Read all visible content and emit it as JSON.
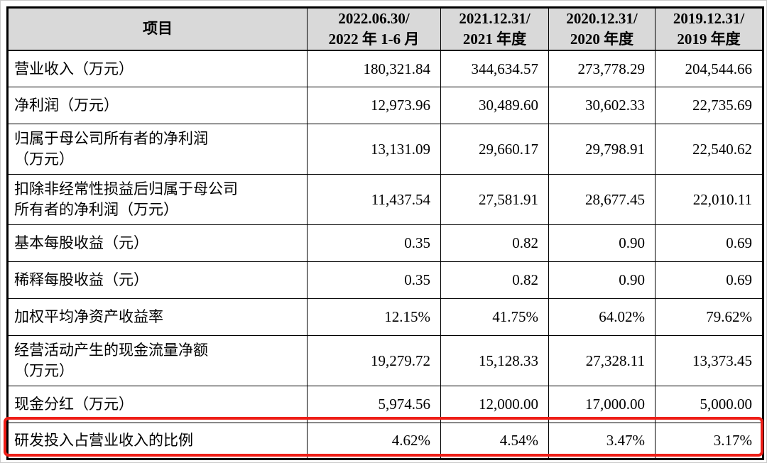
{
  "styles": {
    "header_bg": "#d9d9d9",
    "border_color": "#000000",
    "highlight_color": "#ee1e17",
    "frame_color": "#c9c9c9"
  },
  "table": {
    "header": {
      "item": "项目",
      "periods": [
        "2022.06.30/\n2022 年 1-6 月",
        "2021.12.31/\n2021 年度",
        "2020.12.31/\n2020 年度",
        "2019.12.31/\n2019 年度"
      ]
    },
    "rows": [
      {
        "label": "营业收入（万元）",
        "values": [
          "180,321.84",
          "344,634.57",
          "273,778.29",
          "204,544.66"
        ]
      },
      {
        "label": "净利润（万元）",
        "values": [
          "12,973.96",
          "30,489.60",
          "30,602.33",
          "22,735.69"
        ]
      },
      {
        "label": "归属于母公司所有者的净利润\n（万元）",
        "values": [
          "13,131.09",
          "29,660.17",
          "29,798.91",
          "22,540.62"
        ]
      },
      {
        "label": "扣除非经常性损益后归属于母公司\n所有者的净利润（万元）",
        "values": [
          "11,437.54",
          "27,581.91",
          "28,677.45",
          "22,010.11"
        ]
      },
      {
        "label": "基本每股收益（元）",
        "values": [
          "0.35",
          "0.82",
          "0.90",
          "0.69"
        ]
      },
      {
        "label": "稀释每股收益（元）",
        "values": [
          "0.35",
          "0.82",
          "0.90",
          "0.69"
        ]
      },
      {
        "label": "加权平均净资产收益率",
        "values": [
          "12.15%",
          "41.75%",
          "64.02%",
          "79.62%"
        ]
      },
      {
        "label": "经营活动产生的现金流量净额\n（万元）",
        "values": [
          "19,279.72",
          "15,128.33",
          "27,328.11",
          "13,373.45"
        ]
      },
      {
        "label": "现金分红（万元）",
        "values": [
          "5,974.56",
          "12,000.00",
          "17,000.00",
          "5,000.00"
        ]
      },
      {
        "label": "研发投入占营业收入的比例",
        "values": [
          "4.62%",
          "4.54%",
          "3.47%",
          "3.17%"
        ]
      }
    ]
  }
}
